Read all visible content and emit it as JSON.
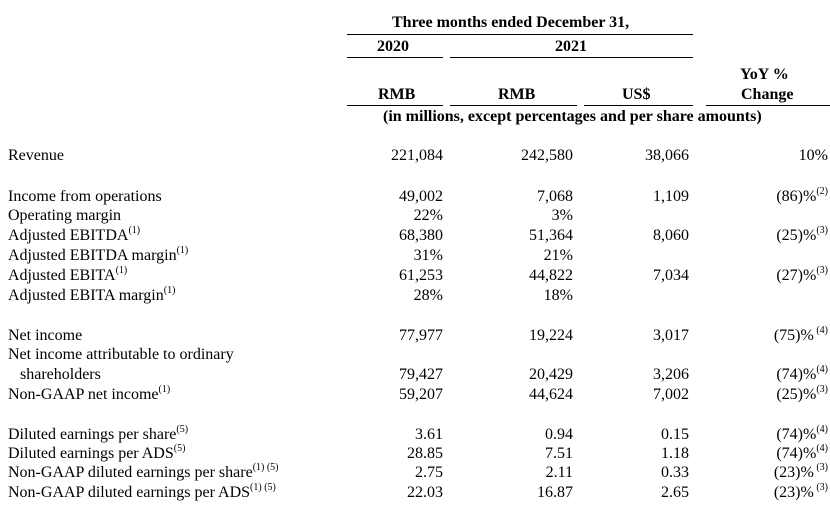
{
  "header": {
    "period": "Three months ended December 31,",
    "year_2020": "2020",
    "year_2021": "2021",
    "yoy_line1": "YoY %",
    "yoy_line2": "Change",
    "cur_rmb_2020": "RMB",
    "cur_rmb_2021": "RMB",
    "cur_usd": "US$",
    "units": "(in millions, except percentages and per share amounts)"
  },
  "rows": [
    {
      "label": "Revenue",
      "sup": "",
      "rmb2020": "221,084",
      "rmb2021": "242,580",
      "usd": "38,066",
      "yoy": "10%",
      "yoy_sup": ""
    },
    {
      "label": "Income from operations",
      "sup": "",
      "rmb2020": "49,002",
      "rmb2021": "7,068",
      "usd": "1,109",
      "yoy": "(86)%",
      "yoy_sup": "(2)"
    },
    {
      "label": "Operating margin",
      "sup": "",
      "rmb2020": "22%",
      "rmb2021": "3%",
      "usd": "",
      "yoy": "",
      "yoy_sup": ""
    },
    {
      "label": "Adjusted EBITDA",
      "sup": "(1)",
      "rmb2020": "68,380",
      "rmb2021": "51,364",
      "usd": "8,060",
      "yoy": "(25)%",
      "yoy_sup": "(3)"
    },
    {
      "label": "Adjusted EBITDA margin",
      "sup": "(1)",
      "rmb2020": "31%",
      "rmb2021": "21%",
      "usd": "",
      "yoy": "",
      "yoy_sup": ""
    },
    {
      "label": "Adjusted EBITA",
      "sup": "(1)",
      "rmb2020": "61,253",
      "rmb2021": "44,822",
      "usd": "7,034",
      "yoy": "(27)%",
      "yoy_sup": "(3)"
    },
    {
      "label": "Adjusted EBITA margin",
      "sup": "(1)",
      "rmb2020": "28%",
      "rmb2021": "18%",
      "usd": "",
      "yoy": "",
      "yoy_sup": ""
    },
    {
      "label": "Net income",
      "sup": "",
      "rmb2020": "77,977",
      "rmb2021": "19,224",
      "usd": "3,017",
      "yoy": "(75)%",
      "yoy_sup": " (4)"
    },
    {
      "label": "Net income attributable to ordinary",
      "sup": "",
      "rmb2020": "",
      "rmb2021": "",
      "usd": "",
      "yoy": "",
      "yoy_sup": ""
    },
    {
      "label": "shareholders",
      "sup": "",
      "rmb2020": "79,427",
      "rmb2021": "20,429",
      "usd": "3,206",
      "yoy": "(74)%",
      "yoy_sup": "(4)"
    },
    {
      "label": "Non-GAAP net income",
      "sup": "(1)",
      "rmb2020": "59,207",
      "rmb2021": "44,624",
      "usd": "7,002",
      "yoy": "(25)%",
      "yoy_sup": "(3)"
    },
    {
      "label": "Diluted earnings per share",
      "sup": "(5)",
      "rmb2020": "3.61",
      "rmb2021": "0.94",
      "usd": "0.15",
      "yoy": "(74)%",
      "yoy_sup": "(4)"
    },
    {
      "label": "Diluted earnings per ADS",
      "sup": "(5)",
      "rmb2020": "28.85",
      "rmb2021": "7.51",
      "usd": "1.18",
      "yoy": "(74)%",
      "yoy_sup": "(4)"
    },
    {
      "label": "Non-GAAP diluted earnings per share",
      "sup": "(1) (5)",
      "rmb2020": "2.75",
      "rmb2021": "2.11",
      "usd": "0.33",
      "yoy": "(23)%",
      "yoy_sup": " (3)"
    },
    {
      "label": "Non-GAAP diluted earnings per ADS",
      "sup": "(1) (5)",
      "rmb2020": "22.03",
      "rmb2021": "16.87",
      "usd": "2.65",
      "yoy": "(23)%",
      "yoy_sup": " (3)"
    }
  ]
}
